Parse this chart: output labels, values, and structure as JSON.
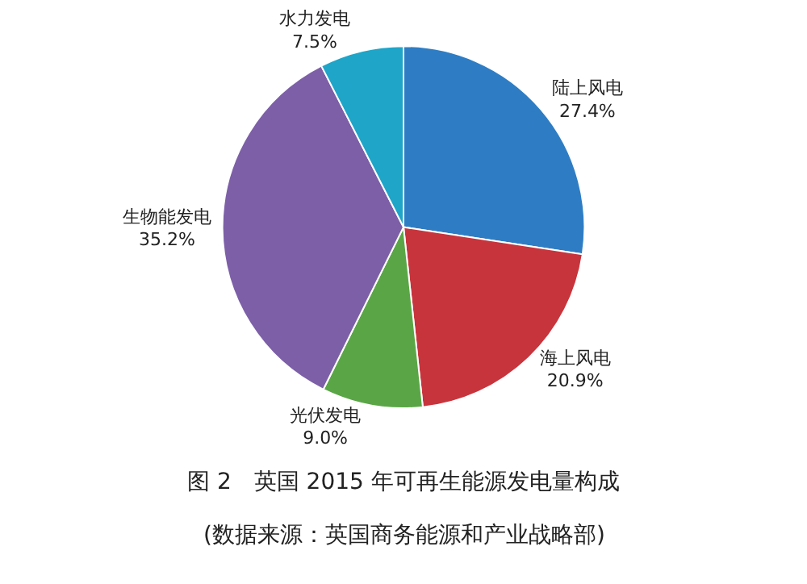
{
  "chart_data": {
    "type": "pie",
    "title": "图 2　英国 2015 年可再生能源发电量构成",
    "subtitle": "(数据来源：英国商务能源和产业战略部)",
    "categories": [
      "陆上风电",
      "海上风电",
      "光伏发电",
      "生物能发电",
      "水力发电"
    ],
    "values": [
      27.4,
      20.9,
      9.0,
      35.2,
      7.5
    ],
    "value_labels": [
      "27.4%",
      "20.9%",
      "9.0%",
      "35.2%",
      "7.5%"
    ],
    "colors": [
      "#2e7dc4",
      "#c8343c",
      "#5aa646",
      "#7d5fa8",
      "#1ea5c8"
    ],
    "legend": false
  }
}
